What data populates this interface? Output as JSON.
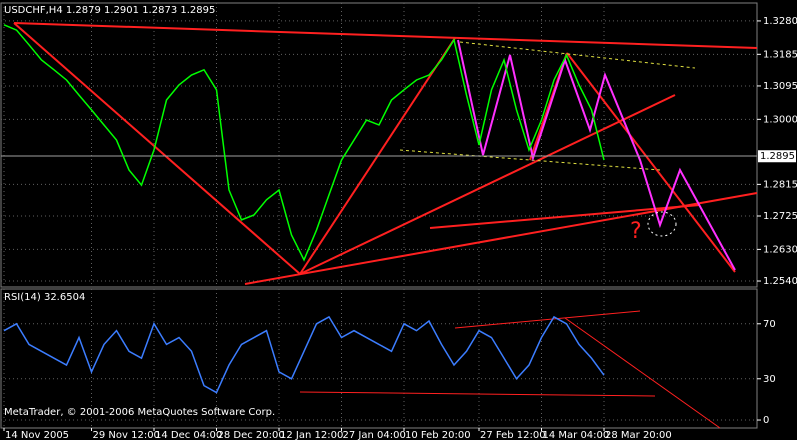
{
  "header": "USDCHF,H4  1.2879 1.2901 1.2873 1.2895",
  "footer": "MetaTrader, © 2001-2006 MetaQuotes Software Corp.",
  "annotation": "?",
  "chart_data": [
    {
      "type": "line",
      "name": "price",
      "color": "#00ff00",
      "grid": true,
      "categories": [
        "14 Nov 2005",
        null,
        null,
        null,
        null,
        null,
        null,
        "29 Nov 12:00",
        null,
        null,
        null,
        null,
        "14 Dec 04:00",
        null,
        null,
        null,
        null,
        "28 Dec 20:00",
        null,
        null,
        null,
        null,
        "12 Jan 12:00",
        null,
        null,
        null,
        null,
        "27 Jan 04:00",
        null,
        null,
        null,
        null,
        "10 Feb 20:00",
        null,
        null,
        null,
        null,
        null,
        "27 Feb 12:00",
        null,
        null,
        null,
        null,
        "14 Mar 04:00",
        null,
        null,
        null,
        null,
        "28 Mar 20:00"
      ],
      "values": [
        1.3269,
        1.3254,
        1.3212,
        1.3169,
        1.3141,
        1.3112,
        1.3069,
        1.3027,
        1.2984,
        1.2941,
        1.2856,
        1.2813,
        1.2913,
        1.3055,
        1.3098,
        1.3126,
        1.3141,
        1.3084,
        1.2799,
        1.2714,
        1.2728,
        1.2771,
        1.2799,
        1.2671,
        1.26,
        1.2685,
        1.2785,
        1.2884,
        1.2941,
        1.2998,
        1.2984,
        1.3055,
        1.3084,
        1.3112,
        1.3126,
        1.3169,
        1.3226,
        1.3069,
        1.2927,
        1.3084,
        1.3169,
        1.3027,
        1.2913,
        1.2998,
        1.3112,
        1.3183,
        1.3098,
        1.3027,
        1.2884
      ],
      "last_price": 1.2895,
      "ylim": [
        1.2523,
        1.3331
      ],
      "yticks": [
        {
          "value": 1.328,
          "label": "1.3280"
        },
        {
          "value": 1.3185,
          "label": "1.3185"
        },
        {
          "value": 1.3095,
          "label": "1.3095"
        },
        {
          "value": 1.3,
          "label": "1.3000"
        },
        {
          "value": 1.2815,
          "label": "1.2815"
        },
        {
          "value": 1.2725,
          "label": "1.2725"
        },
        {
          "value": 1.263,
          "label": "1.2630"
        },
        {
          "value": 1.254,
          "label": "1.2540"
        }
      ]
    },
    {
      "type": "line",
      "name": "rsi",
      "title": "RSI(14) 32.6504",
      "color": "#3c7dff",
      "grid": true,
      "values": [
        65,
        70,
        55,
        50,
        45,
        40,
        60,
        35,
        55,
        65,
        50,
        45,
        70,
        55,
        60,
        50,
        25,
        20,
        40,
        55,
        60,
        65,
        35,
        30,
        50,
        70,
        75,
        60,
        65,
        60,
        55,
        50,
        70,
        65,
        72,
        55,
        40,
        50,
        65,
        60,
        45,
        30,
        40,
        60,
        75,
        70,
        55,
        45,
        32.65
      ],
      "ylim": [
        -5.8,
        95.3
      ],
      "yticks": [
        70,
        30,
        0
      ]
    }
  ]
}
